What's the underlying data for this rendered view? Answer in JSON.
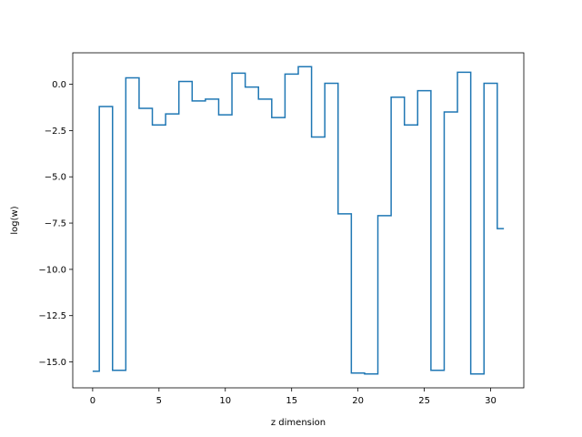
{
  "chart_data": {
    "type": "line",
    "drawstyle": "steps-mid",
    "title": "",
    "xlabel": "z dimension",
    "ylabel": "log(w)",
    "xlim": [
      -1.5,
      32.5
    ],
    "ylim": [
      -16.4,
      1.7
    ],
    "xticks": [
      0,
      5,
      10,
      15,
      20,
      25,
      30
    ],
    "xtick_labels": [
      "0",
      "5",
      "10",
      "15",
      "20",
      "25",
      "30"
    ],
    "yticks": [
      0.0,
      -2.5,
      -5.0,
      -7.5,
      -10.0,
      -12.5,
      -15.0
    ],
    "ytick_labels": [
      "0.0",
      "−2.5",
      "−5.0",
      "−7.5",
      "−10.0",
      "−12.5",
      "−15.0"
    ],
    "grid": false,
    "series": [
      {
        "color": "#1f77b4",
        "x": [
          0,
          1,
          2,
          3,
          4,
          5,
          6,
          7,
          8,
          9,
          10,
          11,
          12,
          13,
          14,
          15,
          16,
          17,
          18,
          19,
          20,
          21,
          22,
          23,
          24,
          25,
          26,
          27,
          28,
          29,
          30,
          31
        ],
        "values": [
          -15.5,
          -1.2,
          -15.45,
          0.35,
          -1.3,
          -2.2,
          -1.6,
          0.15,
          -0.9,
          -0.8,
          -1.65,
          0.6,
          -0.15,
          -0.8,
          -1.8,
          0.55,
          0.95,
          -2.85,
          0.05,
          -7.0,
          -15.6,
          -15.65,
          -7.1,
          -0.7,
          -2.2,
          -0.35,
          -15.45,
          -1.5,
          0.65,
          -15.65,
          0.05,
          -7.8
        ]
      }
    ]
  }
}
